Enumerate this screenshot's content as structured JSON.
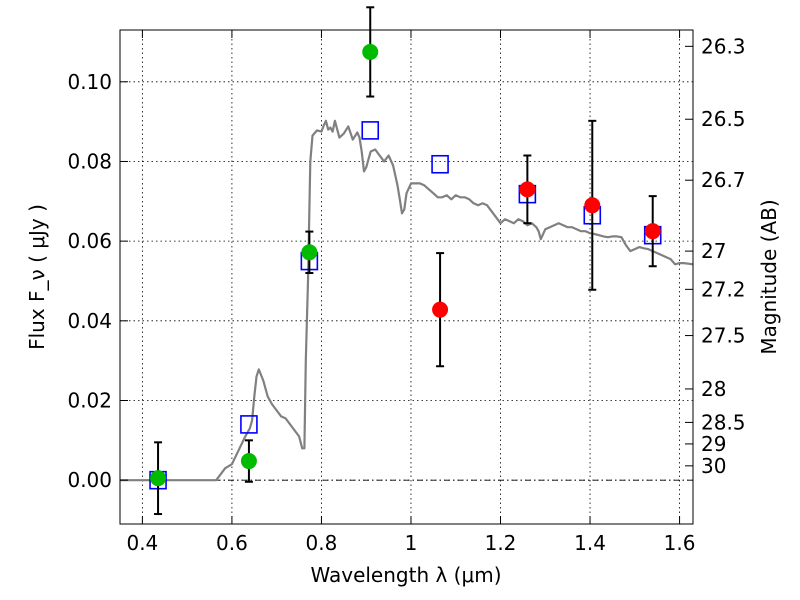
{
  "chart_data": {
    "type": "scatter",
    "title": "",
    "xlabel": "Wavelength  λ (μm)",
    "ylabel": "Flux  F_ν  ( μJy )",
    "y2label": "Magnitude (AB)",
    "xlim": [
      0.35,
      1.63
    ],
    "ylim": [
      -0.011,
      0.113
    ],
    "grid": true,
    "x_ticks": [
      0.4,
      0.6,
      0.8,
      1.0,
      1.2,
      1.4,
      1.6
    ],
    "x_tick_labels": [
      "0.4",
      "0.6",
      "0.8",
      "1",
      "1.2",
      "1.4",
      "1.6"
    ],
    "y_ticks": [
      0.0,
      0.02,
      0.04,
      0.06,
      0.08,
      0.1
    ],
    "y_tick_labels": [
      "0.00",
      "0.02",
      "0.04",
      "0.06",
      "0.08",
      "0.10"
    ],
    "mag_ticks": [
      {
        "label": "26.3",
        "flux": 0.1089
      },
      {
        "label": "26.5",
        "flux": 0.0906
      },
      {
        "label": "26.7",
        "flux": 0.0753
      },
      {
        "label": "27",
        "flux": 0.0575
      },
      {
        "label": "27.2",
        "flux": 0.0479
      },
      {
        "label": "27.5",
        "flux": 0.0363
      },
      {
        "label": "28",
        "flux": 0.0229
      },
      {
        "label": "28.5",
        "flux": 0.0145
      },
      {
        "label": "29",
        "flux": 0.0091
      },
      {
        "label": "30",
        "flux": 0.0036
      }
    ],
    "reference_line_y": 0.0,
    "colors": {
      "model": "#808080",
      "model_points": "#0000ff",
      "green_points": "#00bb00",
      "red_points": "#ff0000",
      "errorbar": "#000000"
    },
    "model_spectrum": [
      [
        0.35,
        0.0
      ],
      [
        0.565,
        0.0
      ],
      [
        0.585,
        0.003
      ],
      [
        0.6,
        0.004
      ],
      [
        0.615,
        0.0075
      ],
      [
        0.63,
        0.011
      ],
      [
        0.64,
        0.013
      ],
      [
        0.645,
        0.015
      ],
      [
        0.65,
        0.021
      ],
      [
        0.655,
        0.026
      ],
      [
        0.66,
        0.0278
      ],
      [
        0.67,
        0.025
      ],
      [
        0.68,
        0.021
      ],
      [
        0.69,
        0.019
      ],
      [
        0.7,
        0.0175
      ],
      [
        0.71,
        0.016
      ],
      [
        0.72,
        0.0155
      ],
      [
        0.73,
        0.014
      ],
      [
        0.74,
        0.0125
      ],
      [
        0.75,
        0.011
      ],
      [
        0.757,
        0.008
      ],
      [
        0.762,
        0.008
      ],
      [
        0.765,
        0.03
      ],
      [
        0.77,
        0.05
      ],
      [
        0.775,
        0.08
      ],
      [
        0.78,
        0.0865
      ],
      [
        0.79,
        0.0878
      ],
      [
        0.8,
        0.0875
      ],
      [
        0.805,
        0.089
      ],
      [
        0.81,
        0.0902
      ],
      [
        0.815,
        0.088
      ],
      [
        0.82,
        0.0885
      ],
      [
        0.825,
        0.0875
      ],
      [
        0.83,
        0.0902
      ],
      [
        0.84,
        0.086
      ],
      [
        0.85,
        0.087
      ],
      [
        0.86,
        0.0888
      ],
      [
        0.87,
        0.0855
      ],
      [
        0.88,
        0.0873
      ],
      [
        0.885,
        0.086
      ],
      [
        0.89,
        0.0825
      ],
      [
        0.895,
        0.0775
      ],
      [
        0.9,
        0.0785
      ],
      [
        0.905,
        0.0805
      ],
      [
        0.91,
        0.0825
      ],
      [
        0.92,
        0.083
      ],
      [
        0.93,
        0.0815
      ],
      [
        0.94,
        0.08
      ],
      [
        0.95,
        0.0815
      ],
      [
        0.96,
        0.079
      ],
      [
        0.965,
        0.0765
      ],
      [
        0.97,
        0.074
      ],
      [
        0.975,
        0.0705
      ],
      [
        0.98,
        0.067
      ],
      [
        0.985,
        0.068
      ],
      [
        0.99,
        0.072
      ],
      [
        1.0,
        0.0745
      ],
      [
        1.01,
        0.0745
      ],
      [
        1.02,
        0.0745
      ],
      [
        1.03,
        0.074
      ],
      [
        1.04,
        0.073
      ],
      [
        1.05,
        0.072
      ],
      [
        1.06,
        0.071
      ],
      [
        1.07,
        0.071
      ],
      [
        1.08,
        0.0715
      ],
      [
        1.09,
        0.0705
      ],
      [
        1.1,
        0.0715
      ],
      [
        1.11,
        0.071
      ],
      [
        1.12,
        0.071
      ],
      [
        1.13,
        0.0705
      ],
      [
        1.14,
        0.0695
      ],
      [
        1.15,
        0.069
      ],
      [
        1.16,
        0.0695
      ],
      [
        1.17,
        0.069
      ],
      [
        1.18,
        0.0675
      ],
      [
        1.19,
        0.066
      ],
      [
        1.2,
        0.0645
      ],
      [
        1.21,
        0.0655
      ],
      [
        1.22,
        0.065
      ],
      [
        1.23,
        0.0645
      ],
      [
        1.24,
        0.0655
      ],
      [
        1.25,
        0.065
      ],
      [
        1.26,
        0.064
      ],
      [
        1.27,
        0.0645
      ],
      [
        1.28,
        0.0635
      ],
      [
        1.285,
        0.0625
      ],
      [
        1.29,
        0.0605
      ],
      [
        1.3,
        0.063
      ],
      [
        1.31,
        0.0635
      ],
      [
        1.32,
        0.064
      ],
      [
        1.33,
        0.0645
      ],
      [
        1.34,
        0.064
      ],
      [
        1.35,
        0.0635
      ],
      [
        1.36,
        0.0635
      ],
      [
        1.37,
        0.063
      ],
      [
        1.38,
        0.0625
      ],
      [
        1.39,
        0.0625
      ],
      [
        1.4,
        0.062
      ],
      [
        1.41,
        0.0618
      ],
      [
        1.42,
        0.0615
      ],
      [
        1.43,
        0.0612
      ],
      [
        1.44,
        0.061
      ],
      [
        1.45,
        0.0612
      ],
      [
        1.46,
        0.0612
      ],
      [
        1.47,
        0.061
      ],
      [
        1.48,
        0.059
      ],
      [
        1.49,
        0.0575
      ],
      [
        1.5,
        0.058
      ],
      [
        1.51,
        0.0585
      ],
      [
        1.52,
        0.0582
      ],
      [
        1.53,
        0.058
      ],
      [
        1.54,
        0.0575
      ],
      [
        1.55,
        0.057
      ],
      [
        1.56,
        0.0565
      ],
      [
        1.57,
        0.056
      ],
      [
        1.58,
        0.0555
      ],
      [
        1.59,
        0.0542
      ],
      [
        1.6,
        0.0545
      ],
      [
        1.61,
        0.0545
      ],
      [
        1.63,
        0.0542
      ]
    ],
    "model_points": [
      {
        "x": 0.435,
        "y": 0.0
      },
      {
        "x": 0.638,
        "y": 0.014
      },
      {
        "x": 0.773,
        "y": 0.055
      },
      {
        "x": 0.909,
        "y": 0.0878
      },
      {
        "x": 1.065,
        "y": 0.0793
      },
      {
        "x": 1.26,
        "y": 0.0718
      },
      {
        "x": 1.405,
        "y": 0.0665
      },
      {
        "x": 1.54,
        "y": 0.0615
      }
    ],
    "series": [
      {
        "color_key": "green_points",
        "points": [
          {
            "x": 0.435,
            "y": 0.0005,
            "err": 0.009
          },
          {
            "x": 0.638,
            "y": 0.0048,
            "err": 0.0052
          },
          {
            "x": 0.773,
            "y": 0.0572,
            "err": 0.0052
          },
          {
            "x": 0.909,
            "y": 0.1075,
            "err": 0.0112
          }
        ]
      },
      {
        "color_key": "red_points",
        "points": [
          {
            "x": 1.065,
            "y": 0.0428,
            "err": 0.0142
          },
          {
            "x": 1.26,
            "y": 0.073,
            "err": 0.0085
          },
          {
            "x": 1.405,
            "y": 0.069,
            "err": 0.0212
          },
          {
            "x": 1.54,
            "y": 0.0625,
            "err": 0.0088
          }
        ]
      }
    ]
  }
}
